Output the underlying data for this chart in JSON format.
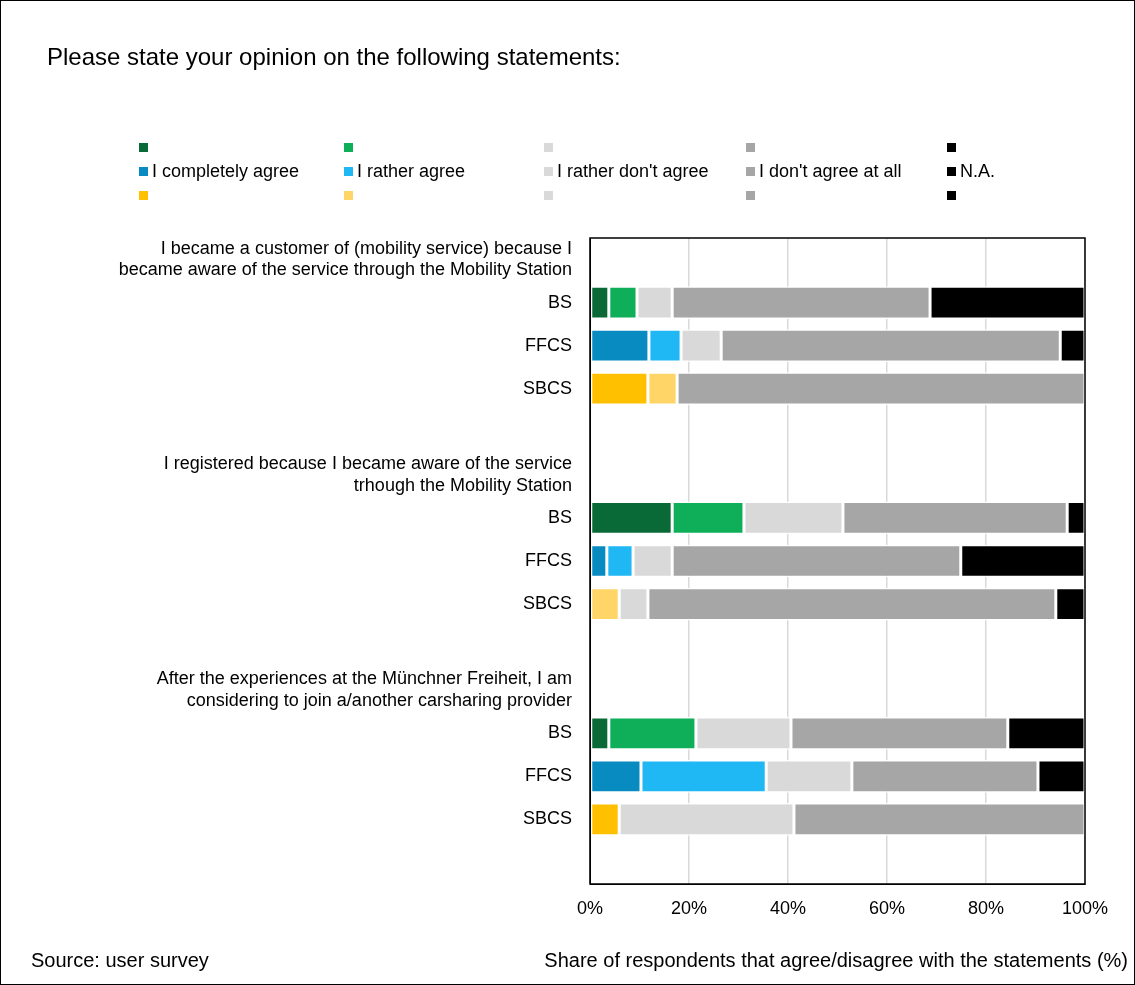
{
  "chart_data": {
    "type": "bar",
    "orientation": "horizontal",
    "stacked": true,
    "title": "Please state your opinion on the following statements:",
    "xlabel": "Share of respondents that agree/disagree with the statements (%)",
    "annotations": [
      "Source: user survey"
    ],
    "categories": [
      "I became a customer of (mobility service) because I became aware of the service through the Mobility Station",
      "BS",
      "FFCS",
      "SBCS",
      null,
      "I registered because I became aware of the service trhough the Mobility Station",
      "BS",
      "FFCS",
      "SBCS",
      null,
      "After the experiences at the Münchner Freiheit, I am considering to join a/another carsharing provider",
      "BS",
      "FFCS",
      "SBCS",
      null
    ],
    "series": [
      {
        "name": "I completely agree",
        "colors": [
          null,
          "#0a6a37",
          "#088bc0",
          "#ffc000",
          null,
          null,
          "#0a6a37",
          "#088bc0",
          "#ffc000",
          null,
          null,
          "#0a6a37",
          "#088bc0",
          "#ffc000",
          null
        ],
        "values": [
          null,
          3.8,
          11.9,
          11.7,
          null,
          null,
          16.6,
          3.4,
          0,
          null,
          null,
          3.8,
          10.3,
          5.9,
          null
        ]
      },
      {
        "name": "I rather agree",
        "colors": [
          null,
          "#0faf5a",
          "#1fb7f4",
          "#ffd567",
          null,
          null,
          "#0faf5a",
          "#1fb7f4",
          "#ffd567",
          null,
          null,
          "#0faf5a",
          "#1fb7f4",
          "#ffd567",
          null
        ],
        "values": [
          null,
          5.7,
          6.5,
          5.9,
          null,
          null,
          14.5,
          5.3,
          5.9,
          null,
          null,
          17.6,
          25.3,
          0,
          null
        ]
      },
      {
        "name": "I rather don't agree",
        "colors": [
          null,
          "#d9d9d9",
          "#d9d9d9",
          "#d9d9d9",
          null,
          null,
          "#d9d9d9",
          "#d9d9d9",
          "#d9d9d9",
          null,
          null,
          "#d9d9d9",
          "#d9d9d9",
          "#d9d9d9",
          null
        ],
        "values": [
          null,
          7.1,
          8.1,
          0,
          null,
          null,
          20,
          7.9,
          5.8,
          null,
          null,
          19.2,
          17.3,
          35.3,
          null
        ]
      },
      {
        "name": "I don't agree at all",
        "colors": [
          null,
          "#a6a6a6",
          "#a6a6a6",
          "#a6a6a6",
          null,
          null,
          "#a6a6a6",
          "#a6a6a6",
          "#a6a6a6",
          null,
          null,
          "#a6a6a6",
          "#a6a6a6",
          "#a6a6a6",
          null
        ],
        "values": [
          null,
          52.1,
          68.5,
          82.4,
          null,
          null,
          45.3,
          58.3,
          82.4,
          null,
          null,
          43.8,
          37.6,
          58.8,
          null
        ]
      },
      {
        "name": "N.A.",
        "colors": [
          null,
          "#000000",
          "#000000",
          "#000000",
          null,
          null,
          "#000000",
          "#000000",
          "#000000",
          null,
          null,
          "#000000",
          "#000000",
          "#000000",
          null
        ],
        "values": [
          null,
          31.3,
          5,
          0,
          null,
          null,
          3.6,
          25.1,
          5.9,
          null,
          null,
          15.6,
          9.5,
          0,
          null
        ]
      }
    ],
    "xlim": [
      0,
      100
    ],
    "xticks": [
      {
        "value": 0,
        "label": "0%"
      },
      {
        "value": 20,
        "label": "20%"
      },
      {
        "value": 40,
        "label": "40%"
      },
      {
        "value": 60,
        "label": "60%"
      },
      {
        "value": 80,
        "label": "80%"
      },
      {
        "value": 100,
        "label": "100%"
      }
    ],
    "grid": "x",
    "legend": "top"
  }
}
